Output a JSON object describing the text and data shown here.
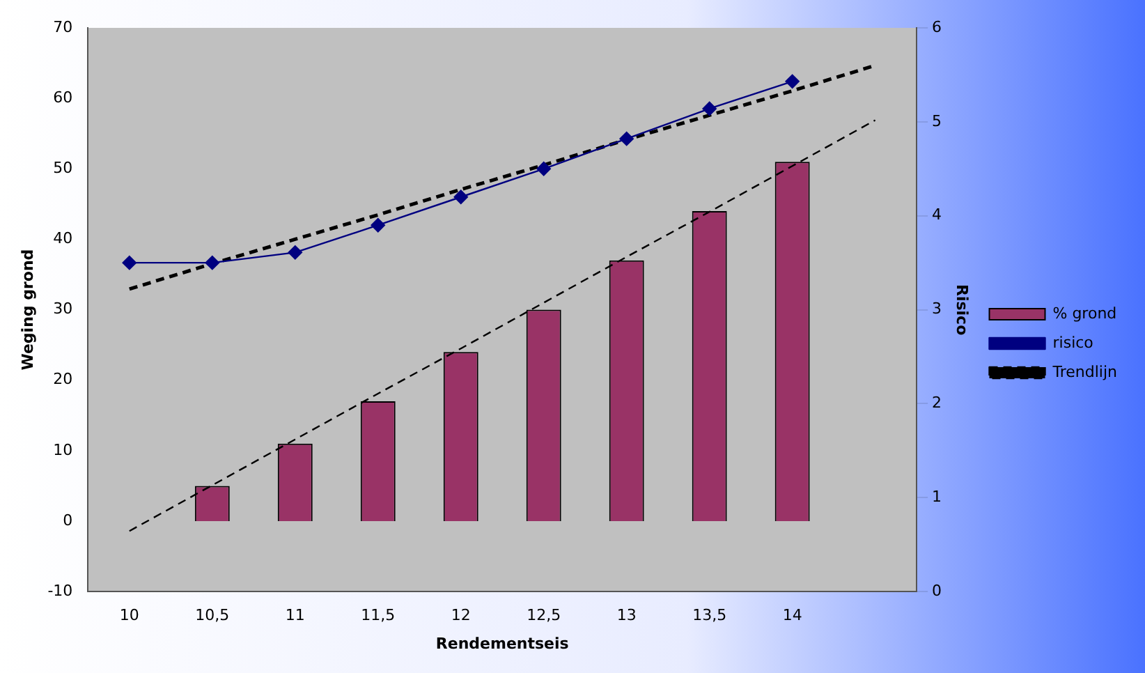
{
  "chart_data": {
    "type": "bar",
    "xlabel": "Rendementseis",
    "ylabel": "Weging grond",
    "y2label": "Risico",
    "categories": [
      "10",
      "10,5",
      "11",
      "11,5",
      "12",
      "12,5",
      "13",
      "13,5",
      "14",
      null
    ],
    "series": [
      {
        "name": "% grond",
        "color": "#993366",
        "values": [
          0,
          5,
          11,
          17,
          24,
          30,
          37,
          44,
          51,
          null
        ]
      },
      {
        "name": "risico",
        "type": "line",
        "axis": "y2",
        "color": "#000080",
        "marker": "diamond",
        "values": [
          3.5,
          3.5,
          3.61,
          3.9,
          4.2,
          4.5,
          4.82,
          5.14,
          5.43,
          null
        ]
      },
      {
        "name": "Trendlijn",
        "type": "line",
        "color": "#000000",
        "marker": "none",
        "line_style": "dashed",
        "values": [
          -1.4,
          5.1,
          11.6,
          18.1,
          24.5,
          31.0,
          37.5,
          43.9,
          50.4,
          56.9
        ]
      },
      {
        "type": "line",
        "axis": "y2",
        "color": "#000000",
        "marker": "none",
        "line_style": "dashed",
        "values": [
          3.22,
          3.49,
          3.75,
          4.01,
          4.28,
          4.54,
          4.81,
          5.07,
          5.33,
          5.6
        ]
      }
    ],
    "ylim": [
      -10,
      70
    ],
    "yticks": [
      -10,
      0,
      10,
      20,
      30,
      40,
      50,
      60,
      70
    ],
    "y2lim": [
      0,
      6
    ],
    "y2ticks": [
      0,
      1,
      2,
      3,
      4,
      5,
      6
    ],
    "grid": false,
    "legend": "right"
  }
}
